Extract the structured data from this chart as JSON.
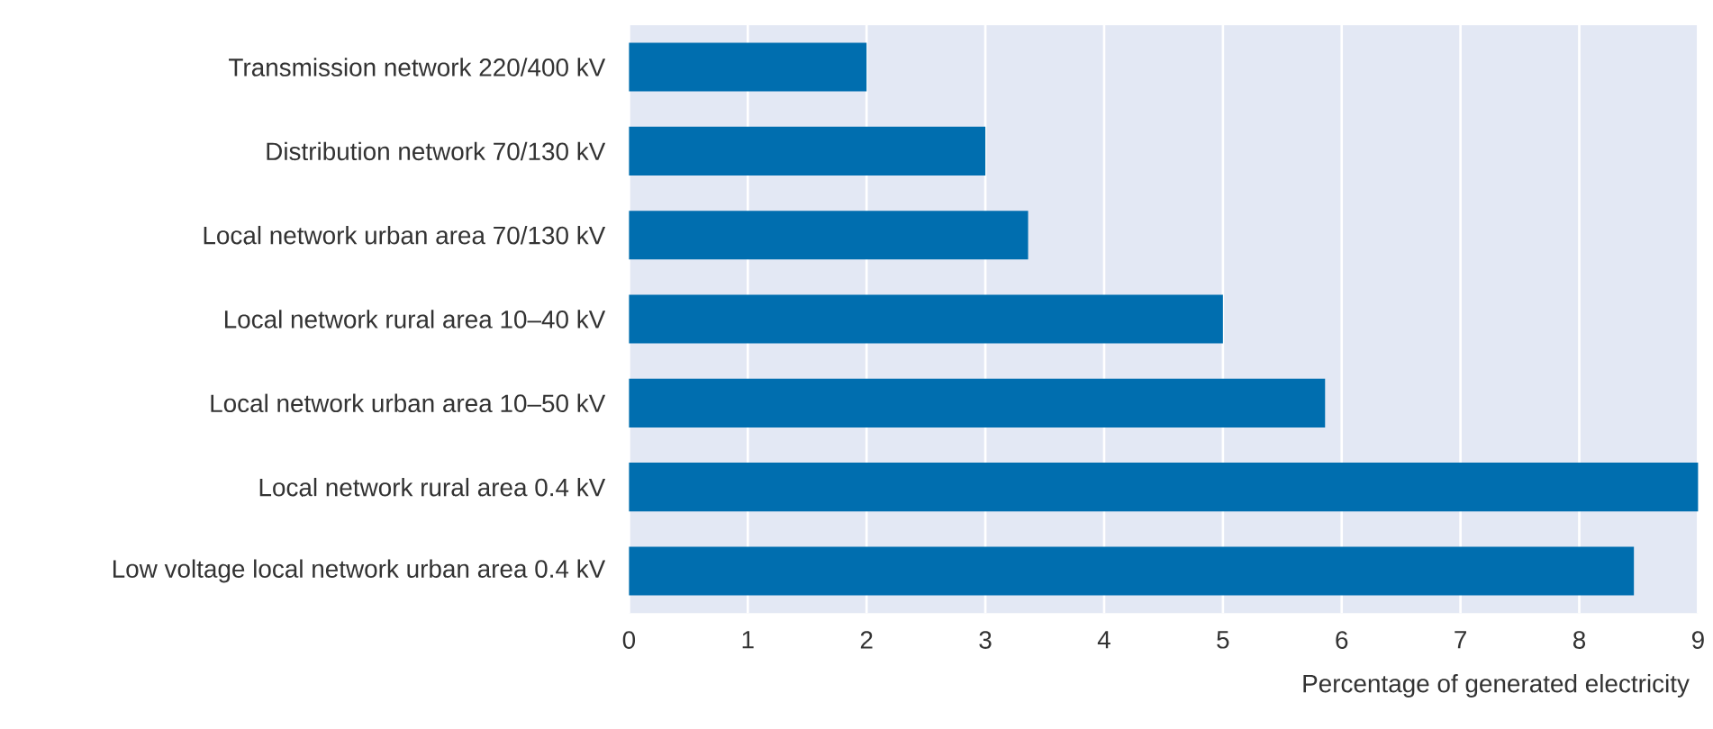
{
  "chart_data": {
    "type": "bar",
    "orientation": "horizontal",
    "xlabel": "Percentage of generated electricity",
    "categories": [
      "Transmission network 220/400 kV",
      "Distribution network 70/130 kV",
      "Local network urban area 70/130 kV",
      "Local network rural area 10–40 kV",
      "Local network urban area 10–50 kV",
      "Local network rural area 0.4 kV",
      "Low voltage local network urban area 0.4 kV"
    ],
    "values": [
      2.0,
      3.0,
      3.36,
      5.0,
      5.86,
      9.0,
      8.46
    ],
    "color": "#006eaf",
    "xlim": [
      0,
      9
    ],
    "xticks": [
      0,
      1,
      2,
      3,
      4,
      5,
      6,
      7,
      8,
      9
    ],
    "grid": "x"
  }
}
